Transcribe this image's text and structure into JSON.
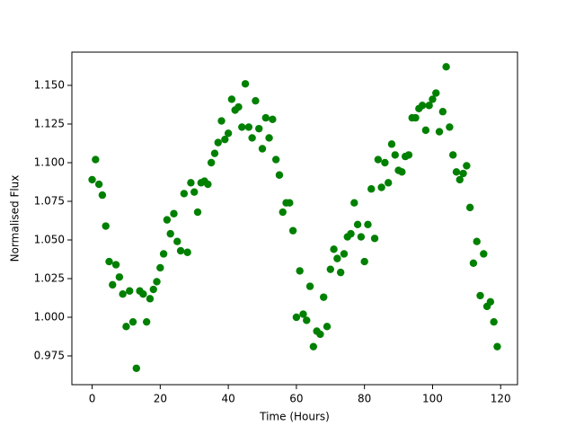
{
  "chart_data": {
    "type": "scatter",
    "xlabel": "Time (Hours)",
    "ylabel": "Normalised Flux",
    "color": "#008000",
    "grid": false,
    "x": [
      0,
      1,
      2,
      3,
      4,
      5,
      6,
      7,
      8,
      9,
      10,
      11,
      12,
      13,
      14,
      15,
      16,
      17,
      18,
      19,
      20,
      21,
      22,
      23,
      24,
      25,
      26,
      27,
      28,
      29,
      30,
      31,
      32,
      33,
      34,
      35,
      36,
      37,
      38,
      39,
      40,
      41,
      42,
      43,
      44,
      45,
      46,
      47,
      48,
      49,
      50,
      51,
      52,
      53,
      54,
      55,
      56,
      57,
      58,
      59,
      60,
      61,
      62,
      63,
      64,
      65,
      66,
      67,
      68,
      69,
      70,
      71,
      72,
      73,
      74,
      75,
      76,
      77,
      78,
      79,
      80,
      81,
      82,
      83,
      84,
      85,
      86,
      87,
      88,
      89,
      90,
      91,
      92,
      93,
      94,
      95,
      96,
      97,
      98,
      99,
      100,
      101,
      102,
      103,
      104,
      105,
      106,
      107,
      108,
      109,
      110,
      111,
      112,
      113,
      114,
      115,
      116,
      117,
      118,
      119
    ],
    "values": [
      1.089,
      1.102,
      1.086,
      1.079,
      1.059,
      1.036,
      1.021,
      1.034,
      1.026,
      1.015,
      0.994,
      1.017,
      0.997,
      0.967,
      1.017,
      1.015,
      0.997,
      1.012,
      1.018,
      1.023,
      1.032,
      1.041,
      1.063,
      1.054,
      1.067,
      1.049,
      1.043,
      1.08,
      1.042,
      1.087,
      1.081,
      1.068,
      1.087,
      1.088,
      1.086,
      1.1,
      1.106,
      1.113,
      1.127,
      1.115,
      1.119,
      1.141,
      1.134,
      1.136,
      1.123,
      1.151,
      1.123,
      1.116,
      1.14,
      1.122,
      1.109,
      1.129,
      1.116,
      1.128,
      1.102,
      1.092,
      1.068,
      1.074,
      1.074,
      1.056,
      1.0,
      1.03,
      1.002,
      0.998,
      1.02,
      0.981,
      0.991,
      0.989,
      1.013,
      0.994,
      1.031,
      1.044,
      1.038,
      1.029,
      1.041,
      1.052,
      1.054,
      1.074,
      1.06,
      1.052,
      1.036,
      1.06,
      1.083,
      1.051,
      1.102,
      1.084,
      1.1,
      1.087,
      1.112,
      1.105,
      1.095,
      1.094,
      1.104,
      1.105,
      1.129,
      1.129,
      1.135,
      1.137,
      1.121,
      1.137,
      1.141,
      1.145,
      1.12,
      1.133,
      1.162,
      1.123,
      1.105,
      1.094,
      1.089,
      1.093,
      1.098,
      1.071,
      1.035,
      1.049,
      1.014,
      1.041,
      1.007,
      1.01,
      0.997,
      0.981
    ],
    "xlim": [
      -5.95,
      124.95
    ],
    "xticks": [
      0,
      20,
      40,
      60,
      80,
      100,
      120
    ],
    "ylim": [
      0.9564,
      1.1715
    ],
    "yticks": [
      {
        "value": 0.975,
        "label": "0.975"
      },
      {
        "value": 1.0,
        "label": "1.000"
      },
      {
        "value": 1.025,
        "label": "1.025"
      },
      {
        "value": 1.05,
        "label": "1.050"
      },
      {
        "value": 1.075,
        "label": "1.075"
      },
      {
        "value": 1.1,
        "label": "1.100"
      },
      {
        "value": 1.125,
        "label": "1.125"
      },
      {
        "value": 1.15,
        "label": "1.150"
      }
    ]
  }
}
